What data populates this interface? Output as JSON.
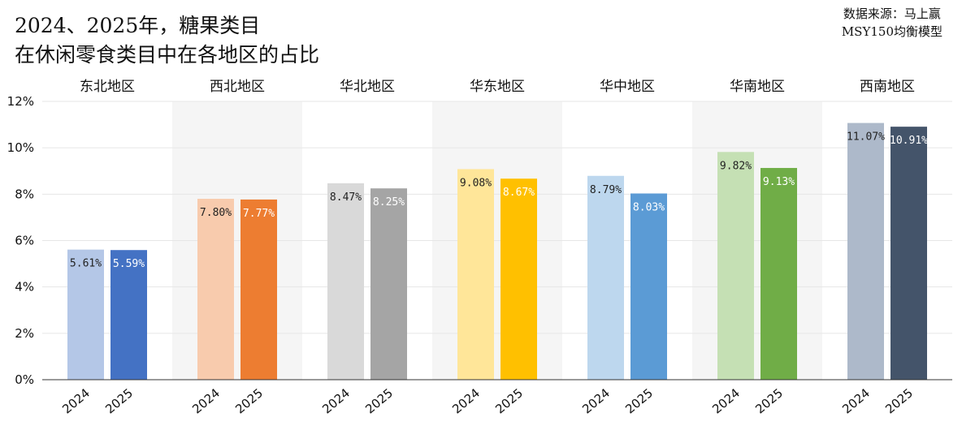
{
  "title": {
    "line1": "2024、2025年，糖果类目",
    "line2": "在休闲零食类目中在各地区的占比"
  },
  "source": {
    "line1": "数据来源：马上赢",
    "line2": "MSY150均衡模型"
  },
  "chart_data": {
    "type": "bar",
    "categories": [
      "东北地区",
      "西北地区",
      "华北地区",
      "华东地区",
      "华中地区",
      "华南地区",
      "西南地区"
    ],
    "x_tick_labels": [
      "2024",
      "2025"
    ],
    "series": [
      {
        "values": [
          5.61,
          7.8,
          8.47,
          9.08,
          8.79,
          9.82,
          11.07
        ]
      },
      {
        "values": [
          5.59,
          7.77,
          8.25,
          8.67,
          8.03,
          9.13,
          10.91
        ]
      }
    ],
    "data_labels": [
      [
        "5.61%",
        "7.80%",
        "8.47%",
        "9.08%",
        "8.79%",
        "9.82%",
        "11.07%"
      ],
      [
        "5.59%",
        "7.77%",
        "8.25%",
        "8.67%",
        "8.03%",
        "9.13%",
        "10.91%"
      ]
    ],
    "y_ticks": [
      "0%",
      "2%",
      "4%",
      "6%",
      "8%",
      "10%",
      "12%"
    ],
    "ylim": [
      0,
      12
    ],
    "grid": true,
    "colors": {
      "2024": [
        "#b4c7e7",
        "#f8cbad",
        "#d9d9d9",
        "#ffe699",
        "#bdd7ee",
        "#c5e0b4",
        "#adb9ca"
      ],
      "2025": [
        "#4472c4",
        "#ed7d31",
        "#a5a5a5",
        "#ffc000",
        "#5b9bd5",
        "#70ad47",
        "#44546a"
      ],
      "panel_shade": "#f5f5f5",
      "grid": "#e6e6e6"
    }
  }
}
